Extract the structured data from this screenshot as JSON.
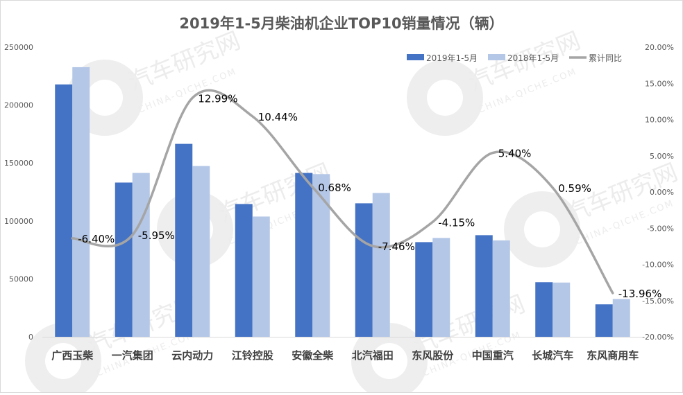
{
  "chart_data": {
    "type": "bar",
    "title": "2019年1-5月柴油机企业TOP10销量情况（辆）",
    "xlabel": "",
    "ylabel": "",
    "categories": [
      "广西玉柴",
      "一汽集团",
      "云内动力",
      "江铃控股",
      "安徽全柴",
      "北汽福田",
      "东风股份",
      "中国重汽",
      "长城汽车",
      "东风商用车"
    ],
    "series": [
      {
        "name": "2019年1-5月",
        "type": "bar",
        "axis": "left",
        "color": "#4472C4",
        "values": [
          217800,
          133100,
          166500,
          114600,
          141400,
          115200,
          81700,
          87700,
          47100,
          28000
        ]
      },
      {
        "name": "2018年1-5月",
        "type": "bar",
        "axis": "left",
        "color": "#B4C7E7",
        "values": [
          232700,
          141400,
          147400,
          103800,
          140400,
          124100,
          85300,
          83200,
          46800,
          32600
        ]
      },
      {
        "name": "累计同比",
        "type": "line",
        "axis": "right",
        "color": "#A5A5A5",
        "values": [
          -6.4,
          -5.95,
          12.99,
          10.44,
          0.68,
          -7.46,
          -4.15,
          5.4,
          0.59,
          -13.96
        ],
        "labels": [
          "-6.40%",
          "-5.95%",
          "12.99%",
          "10.44%",
          "0.68%",
          "-7.46%",
          "-4.15%",
          "5.40%",
          "0.59%",
          "-13.96%"
        ]
      }
    ],
    "ylim": [
      0,
      250000
    ],
    "yticks": [
      "0",
      "50000",
      "100000",
      "150000",
      "200000",
      "250000"
    ],
    "y2lim": [
      -20,
      20
    ],
    "y2ticks": [
      "-20.00%",
      "-15.00%",
      "-10.00%",
      "-5.00%",
      "0.00%",
      "5.00%",
      "10.00%",
      "15.00%",
      "20.00%"
    ],
    "grid": false,
    "legend": "top-right",
    "watermark": "汽车研究网 CHINA-QICHE.COM"
  }
}
